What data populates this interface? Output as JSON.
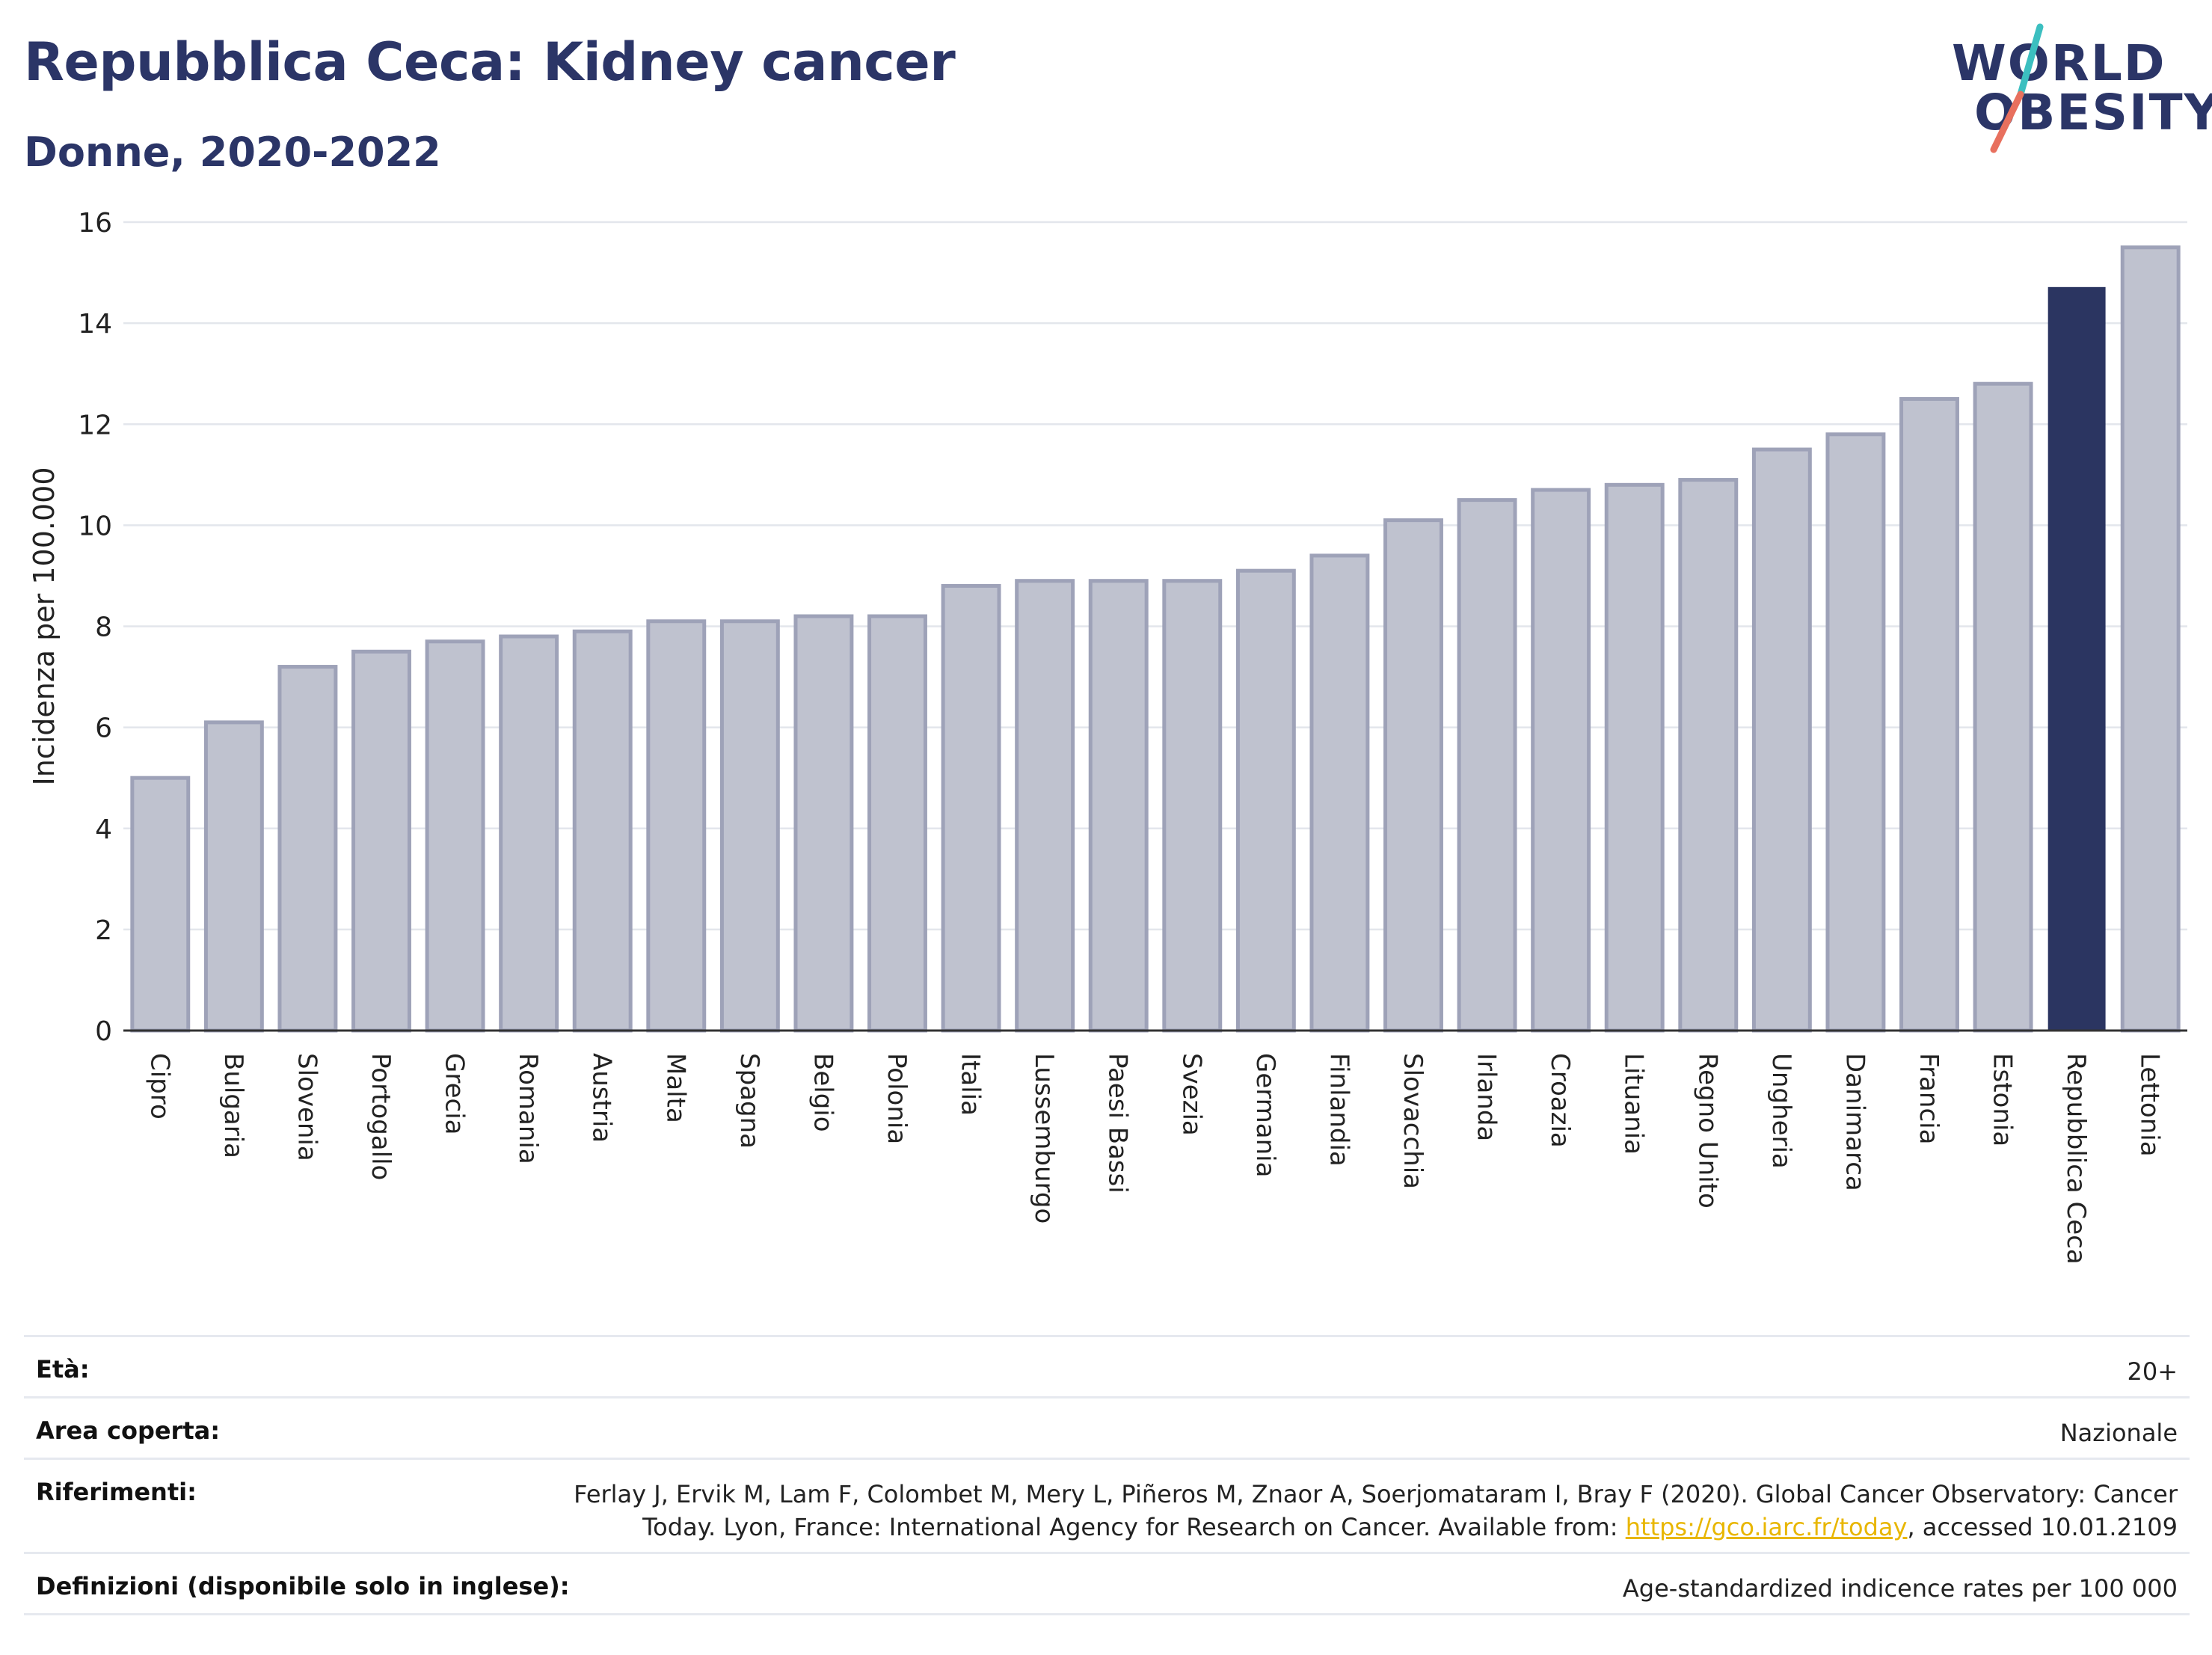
{
  "header": {
    "title": "Repubblica Ceca: Kidney cancer",
    "subtitle": "Donne, 2020-2022"
  },
  "logo": {
    "line1": "WORLD",
    "line2": "OBESITY",
    "accent_colors": [
      "#3cbfc0",
      "#e8705e"
    ]
  },
  "chart_data": {
    "type": "bar",
    "ylabel": "Incidenza per 100.000",
    "ylim": [
      0,
      16
    ],
    "yticks": [
      0,
      2,
      4,
      6,
      8,
      10,
      12,
      14,
      16
    ],
    "grid": true,
    "highlight": "Repubblica Ceca",
    "colors": {
      "default": "#bfc2cf",
      "default_border": "#9ea2b8",
      "highlight": "#2b3561"
    },
    "categories": [
      "Cipro",
      "Bulgaria",
      "Slovenia",
      "Portogallo",
      "Grecia",
      "Romania",
      "Austria",
      "Malta",
      "Spagna",
      "Belgio",
      "Polonia",
      "Italia",
      "Lussemburgo",
      "Paesi Bassi",
      "Svezia",
      "Germania",
      "Finlandia",
      "Slovacchia",
      "Irlanda",
      "Croazia",
      "Lituania",
      "Regno Unito",
      "Ungheria",
      "Danimarca",
      "Francia",
      "Estonia",
      "Repubblica Ceca",
      "Lettonia"
    ],
    "values": [
      5.0,
      6.1,
      7.2,
      7.5,
      7.7,
      7.8,
      7.9,
      8.1,
      8.1,
      8.2,
      8.2,
      8.8,
      8.9,
      8.9,
      8.9,
      9.1,
      9.4,
      10.1,
      10.5,
      10.7,
      10.8,
      10.9,
      11.5,
      11.8,
      12.5,
      12.8,
      14.7,
      15.5
    ]
  },
  "meta": {
    "age_label": "Età:",
    "age_value": "20+",
    "area_label": "Area coperta:",
    "area_value": "Nazionale",
    "refs_label": "Riferimenti:",
    "refs_line1": "Ferlay J, Ervik M, Lam F, Colombet M, Mery L, Piñeros M, Znaor A, Soerjomataram I, Bray F (2020). Global Cancer Observatory: Cancer",
    "refs_line2_pre": "Today. Lyon, France: International Agency for Research on Cancer. Available from: ",
    "refs_link": "https://gco.iarc.fr/today",
    "refs_line2_post": ", accessed 10.01.2109",
    "defs_label": "Definizioni (disponibile solo in inglese):",
    "defs_value": "Age-standardized indicence rates per 100 000"
  }
}
